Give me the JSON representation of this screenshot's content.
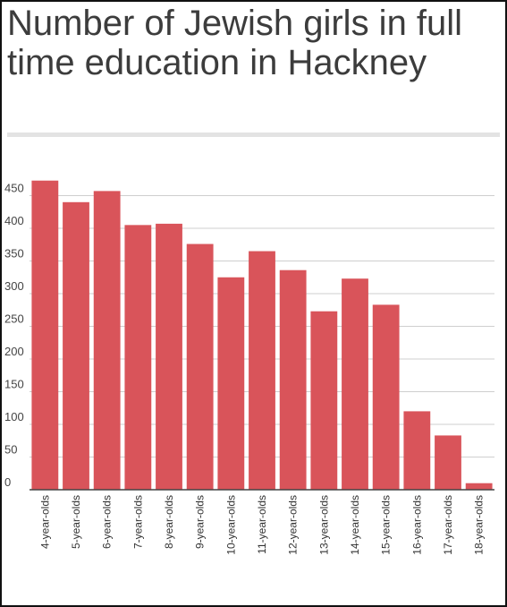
{
  "chart_data": {
    "type": "bar",
    "title": "Number of Jewish girls in full time education in Hackney",
    "xlabel": "",
    "ylabel": "",
    "categories": [
      "4-year-olds",
      "5-year-olds",
      "6-year-olds",
      "7-year-olds",
      "8-year-olds",
      "9-year-olds",
      "10-year-olds",
      "11-year-olds",
      "12-year-olds",
      "13-year-olds",
      "14-year-olds",
      "15-year-olds",
      "16-year-olds",
      "17-year-olds",
      "18-year-olds"
    ],
    "values": [
      473,
      440,
      457,
      405,
      407,
      376,
      325,
      365,
      336,
      273,
      323,
      283,
      120,
      83,
      10
    ],
    "yticks": [
      0,
      50,
      100,
      150,
      200,
      250,
      300,
      350,
      400,
      450
    ],
    "ylim": [
      0,
      480
    ],
    "grid": true,
    "bar_color": "#d9545a",
    "grid_color": "#cfcfcf",
    "text_color": "#3c3c3c"
  }
}
